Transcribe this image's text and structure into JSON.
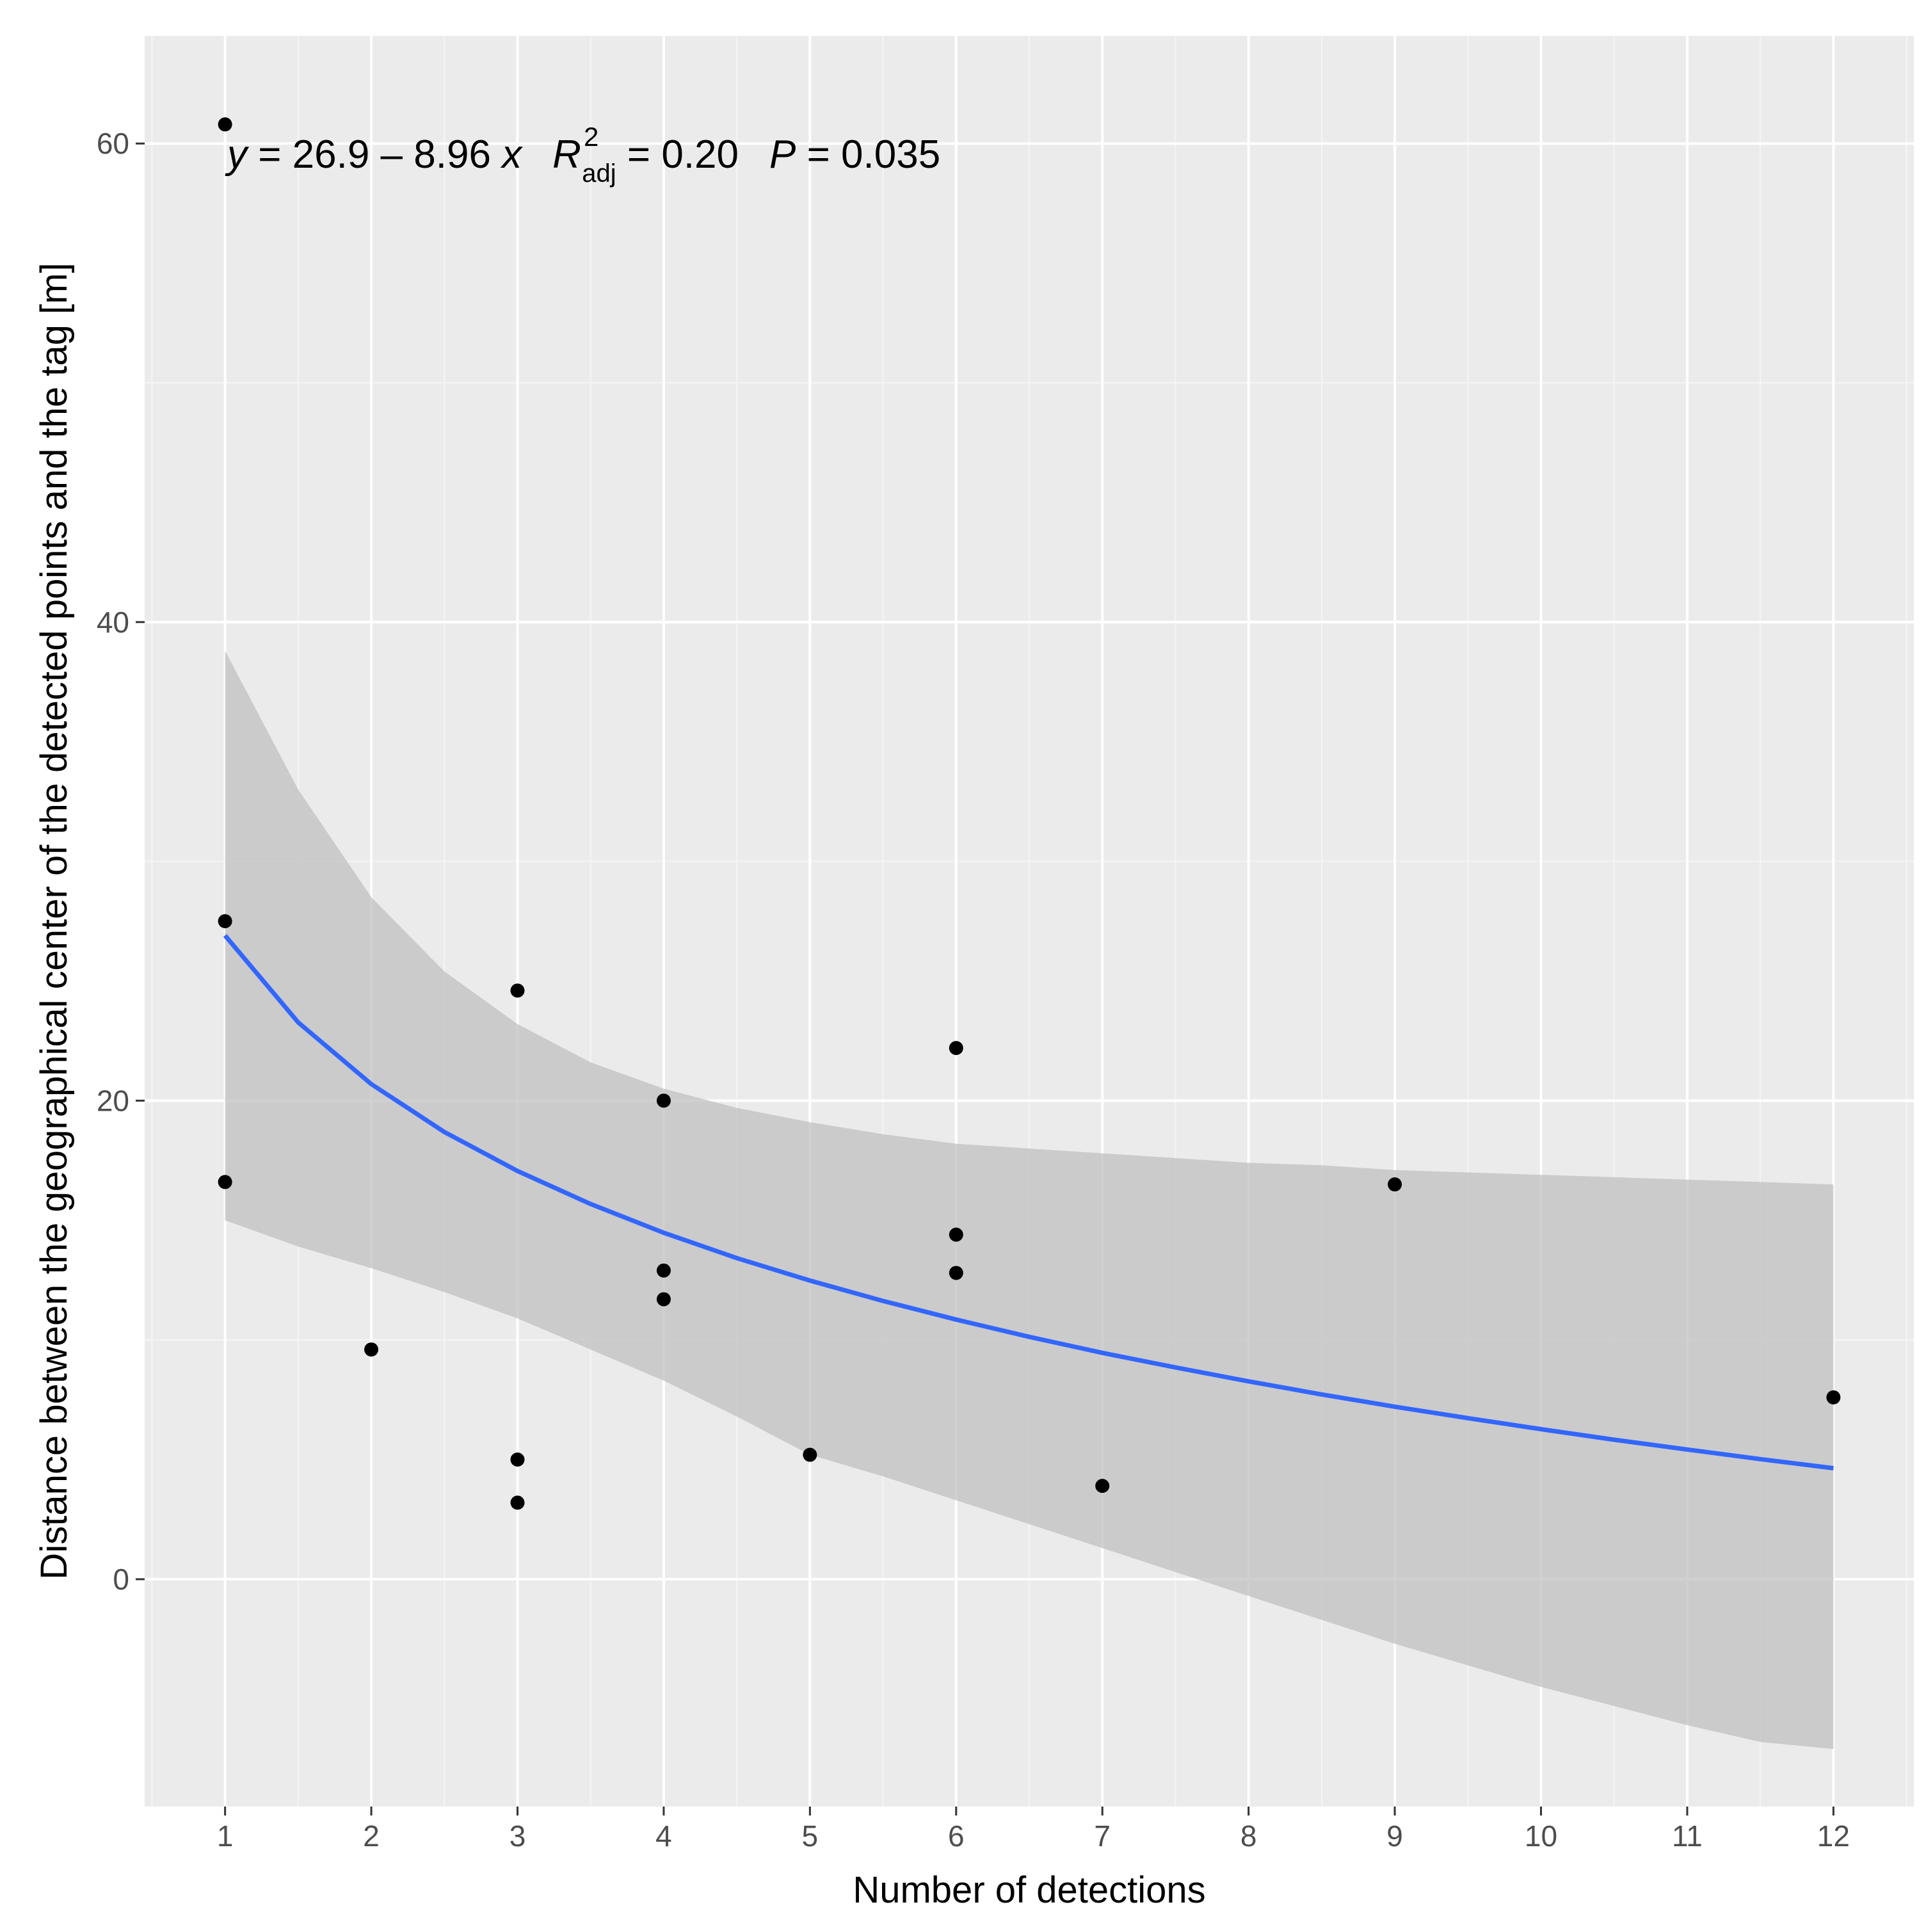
{
  "chart_data": {
    "type": "scatter",
    "title": "",
    "xlabel": "Number of detections",
    "ylabel": "Distance between the geographical center of the detected points and the tag [m]",
    "xlim": [
      0.45,
      12.55
    ],
    "ylim": [
      -9.5,
      64.5
    ],
    "x_ticks": [
      1,
      2,
      3,
      4,
      5,
      6,
      7,
      8,
      9,
      10,
      11,
      12
    ],
    "x_tick_labels": [
      "1",
      "2",
      "3",
      "4",
      "5",
      "6",
      "7",
      "8",
      "9",
      "10",
      "11",
      "12"
    ],
    "y_ticks": [
      0,
      20,
      40,
      60
    ],
    "y_tick_labels": [
      "0",
      "20",
      "40",
      "60"
    ],
    "grid": true,
    "points": [
      {
        "x": 1,
        "y": 60.8
      },
      {
        "x": 1,
        "y": 27.5
      },
      {
        "x": 1,
        "y": 16.6
      },
      {
        "x": 2,
        "y": 9.6
      },
      {
        "x": 3,
        "y": 24.6
      },
      {
        "x": 3,
        "y": 5.0
      },
      {
        "x": 3,
        "y": 3.2
      },
      {
        "x": 4,
        "y": 20.0
      },
      {
        "x": 4,
        "y": 12.9
      },
      {
        "x": 4,
        "y": 11.7
      },
      {
        "x": 5,
        "y": 5.2
      },
      {
        "x": 6,
        "y": 22.2
      },
      {
        "x": 6,
        "y": 14.4
      },
      {
        "x": 6,
        "y": 12.8
      },
      {
        "x": 7,
        "y": 3.9
      },
      {
        "x": 9,
        "y": 16.5
      },
      {
        "x": 12,
        "y": 7.6
      }
    ],
    "fit": {
      "x": [
        1,
        1.5,
        2,
        2.5,
        3,
        3.5,
        4,
        4.5,
        5,
        5.5,
        6,
        6.5,
        7,
        7.5,
        8,
        8.5,
        9,
        9.5,
        10,
        10.5,
        11,
        11.5,
        12
      ],
      "y": [
        26.9,
        23.27,
        20.69,
        18.69,
        17.06,
        15.68,
        14.48,
        13.42,
        12.48,
        11.63,
        10.85,
        10.13,
        9.46,
        8.85,
        8.27,
        7.72,
        7.21,
        6.73,
        6.27,
        5.83,
        5.42,
        5.02,
        4.64
      ],
      "ci_lower": [
        15.0,
        13.9,
        13.0,
        12.0,
        10.9,
        9.6,
        8.3,
        6.8,
        5.2,
        4.3,
        3.3,
        2.3,
        1.3,
        0.3,
        -0.7,
        -1.7,
        -2.7,
        -3.6,
        -4.5,
        -5.3,
        -6.1,
        -6.8,
        -7.1
      ],
      "ci_upper": [
        38.8,
        33.0,
        28.5,
        25.4,
        23.2,
        21.6,
        20.5,
        19.7,
        19.1,
        18.6,
        18.2,
        18.0,
        17.8,
        17.6,
        17.4,
        17.3,
        17.1,
        17.0,
        16.9,
        16.8,
        16.7,
        16.6,
        16.5
      ]
    },
    "annotation": {
      "y_var": "y",
      "equation": " = 26.9 – 8.96 ",
      "x_var": "x",
      "r_symbol": "R",
      "r_sup": "2",
      "r_sub": "adj",
      "r_value": " = 0.20",
      "p_symbol": "P",
      "p_value": " = 0.035"
    },
    "colors": {
      "panel": "#ebebeb",
      "grid_major": "#ffffff",
      "grid_minor": "#f5f5f5",
      "ribbon": "#bebebe",
      "fit_line": "#3366ff",
      "points": "#000000",
      "tick": "#333333"
    }
  }
}
